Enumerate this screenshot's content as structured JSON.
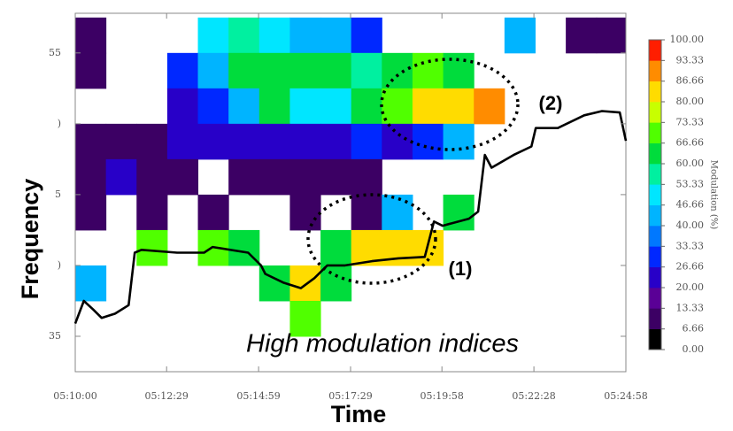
{
  "chart_data": {
    "type": "heatmap",
    "x_label": "Time",
    "y_label": "Frequency",
    "xlim": [
      0,
      898
    ],
    "xticks": [
      {
        "value": 0,
        "label": "05:10:00"
      },
      {
        "value": 149,
        "label": "05:12:29"
      },
      {
        "value": 299,
        "label": "05:14:59"
      },
      {
        "value": 449,
        "label": "05:17:29"
      },
      {
        "value": 598,
        "label": "05:19:58"
      },
      {
        "value": 748,
        "label": "05:22:28"
      },
      {
        "value": 898,
        "label": "05:24:58"
      }
    ],
    "ylim": [
      32.5,
      57.8
    ],
    "yticks": [
      35,
      {
        "value": 40,
        "label": ")"
      },
      {
        "value": 45,
        "label": "5"
      },
      {
        "value": 50,
        "label": ")"
      },
      55
    ],
    "heatmap": {
      "x_edges": [
        0,
        50,
        100,
        150,
        200,
        250,
        300,
        350,
        400,
        450,
        500,
        550,
        600,
        650,
        700,
        750,
        800,
        850,
        898
      ],
      "y_edges": [
        57.5,
        55,
        52.5,
        50,
        47.5,
        45,
        42.5,
        40,
        37.5,
        35,
        32.5
      ],
      "values": [
        [
          13,
          null,
          null,
          null,
          50,
          55,
          50,
          45,
          40,
          30,
          null,
          null,
          null,
          null,
          40,
          null,
          13,
          13
        ],
        [
          13,
          null,
          null,
          30,
          45,
          60,
          66,
          60,
          60,
          55,
          66,
          73,
          66,
          null,
          null,
          null,
          null,
          null
        ],
        [
          null,
          null,
          null,
          26,
          33,
          40,
          60,
          53,
          53,
          66,
          73,
          86,
          86,
          93,
          null,
          null,
          null,
          null
        ],
        [
          13,
          13,
          13,
          20,
          26,
          26,
          26,
          20,
          26,
          33,
          20,
          33,
          46,
          null,
          null,
          null,
          null,
          null
        ],
        [
          13,
          20,
          13,
          13,
          null,
          13,
          13,
          13,
          13,
          13,
          null,
          null,
          null,
          null,
          null,
          null,
          null,
          null
        ],
        [
          13,
          null,
          13,
          null,
          13,
          null,
          null,
          13,
          null,
          13,
          46,
          null,
          66,
          null,
          null,
          null,
          null,
          null
        ],
        [
          null,
          null,
          73,
          null,
          73,
          66,
          null,
          null,
          60,
          80,
          86,
          80,
          null,
          null,
          null,
          null,
          null,
          null
        ],
        [
          40,
          null,
          null,
          null,
          null,
          null,
          66,
          80,
          60,
          null,
          null,
          null,
          null,
          null,
          null,
          null,
          null,
          null
        ],
        [
          null,
          null,
          null,
          null,
          null,
          null,
          null,
          73,
          null,
          null,
          null,
          null,
          null,
          null,
          null,
          null,
          null,
          null
        ],
        [
          null,
          null,
          null,
          null,
          null,
          null,
          null,
          null,
          null,
          null,
          null,
          null,
          null,
          null,
          null,
          null,
          null,
          null
        ]
      ]
    },
    "line": {
      "color": "#000000",
      "x": [
        0,
        14,
        29,
        43,
        65,
        87,
        97,
        108,
        166,
        210,
        224,
        282,
        303,
        310,
        339,
        368,
        390,
        411,
        440,
        484,
        527,
        570,
        585,
        599,
        642,
        657,
        668,
        679,
        715,
        744,
        751,
        787,
        830,
        859,
        888,
        898
      ],
      "y": [
        35.9,
        37.5,
        36.9,
        36.3,
        36.6,
        37.2,
        40.9,
        41.1,
        40.9,
        40.9,
        41.3,
        40.9,
        40,
        39.4,
        38.8,
        38.4,
        39.1,
        40,
        40,
        40.3,
        40.5,
        40.6,
        43.1,
        42.8,
        43.3,
        43.8,
        47.8,
        46.9,
        47.8,
        48.4,
        49.7,
        49.7,
        50.6,
        50.9,
        50.8,
        48.8
      ]
    },
    "colorbar": {
      "label": "Modulation (%)",
      "lim": [
        0,
        100
      ],
      "ticks": [
        {
          "value": 0,
          "label": "0.00"
        },
        {
          "value": 6.66,
          "label": "6.66"
        },
        {
          "value": 13.33,
          "label": "13.33"
        },
        {
          "value": 20,
          "label": "20.00"
        },
        {
          "value": 26.66,
          "label": "26.66"
        },
        {
          "value": 33.33,
          "label": "33.33"
        },
        {
          "value": 40,
          "label": "40.00"
        },
        {
          "value": 46.66,
          "label": "46.66"
        },
        {
          "value": 53.33,
          "label": "53.33"
        },
        {
          "value": 60,
          "label": "60.00"
        },
        {
          "value": 66.66,
          "label": "66.66"
        },
        {
          "value": 73.33,
          "label": "73.33"
        },
        {
          "value": 80,
          "label": "80.00"
        },
        {
          "value": 86.66,
          "label": "86.66"
        },
        {
          "value": 93.33,
          "label": "93.33"
        },
        {
          "value": 100,
          "label": "100.00"
        }
      ],
      "colors": [
        "#000000",
        "#3c0064",
        "#5a0096",
        "#2800c8",
        "#0028ff",
        "#0078ff",
        "#00b4ff",
        "#00e6ff",
        "#00f0a0",
        "#00dc3c",
        "#50ff00",
        "#c8ff00",
        "#ffdc00",
        "#ff8c00",
        "#ff1e00"
      ]
    },
    "annotations": [
      {
        "text": "(1)"
      },
      {
        "text": "(2)"
      },
      {
        "text": "High modulation indices"
      }
    ]
  }
}
